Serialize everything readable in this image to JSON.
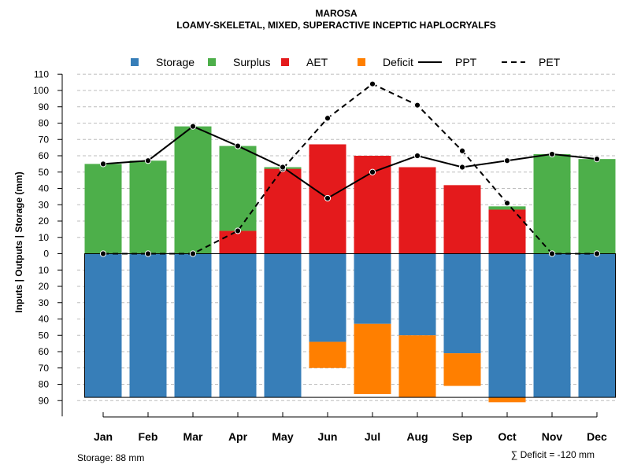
{
  "chart_data": {
    "type": "bar",
    "title": "MAROSA",
    "subtitle": "LOAMY-SKELETAL, MIXED, SUPERACTIVE INCEPTIC HAPLOCRYALFS",
    "ylabel": "Inputs | Outputs | Storage    (mm)",
    "ylim_upper": [
      0,
      110
    ],
    "ylim_lower": [
      0,
      90
    ],
    "yticks_upper": [
      0,
      10,
      20,
      30,
      40,
      50,
      60,
      70,
      80,
      90,
      100,
      110
    ],
    "yticks_lower": [
      10,
      20,
      30,
      40,
      50,
      60,
      70,
      80,
      90
    ],
    "grid": true,
    "categories": [
      "Jan",
      "Feb",
      "Mar",
      "Apr",
      "May",
      "Jun",
      "Jul",
      "Aug",
      "Sep",
      "Oct",
      "Nov",
      "Dec"
    ],
    "legend": [
      {
        "name": "Storage",
        "kind": "swatch",
        "color": "#377EB8"
      },
      {
        "name": "Surplus",
        "kind": "swatch",
        "color": "#4DAF4A"
      },
      {
        "name": "AET",
        "kind": "swatch",
        "color": "#E41A1C"
      },
      {
        "name": "Deficit",
        "kind": "swatch",
        "color": "#FF7F00"
      },
      {
        "name": "PPT",
        "kind": "line",
        "dash": "solid",
        "color": "#000000"
      },
      {
        "name": "PET",
        "kind": "line",
        "dash": "dashed",
        "color": "#000000"
      }
    ],
    "series": [
      {
        "name": "AET",
        "color": "#E41A1C",
        "values": [
          0,
          0,
          0,
          14,
          52,
          67,
          60,
          53,
          42,
          27,
          0,
          0
        ]
      },
      {
        "name": "Surplus",
        "color": "#4DAF4A",
        "values": [
          55,
          57,
          78,
          52,
          1,
          0,
          0,
          0,
          0,
          2,
          61,
          58
        ]
      },
      {
        "name": "Storage",
        "color": "#377EB8",
        "values": [
          88,
          88,
          88,
          88,
          88,
          54,
          43,
          50,
          61,
          88,
          88,
          88
        ]
      },
      {
        "name": "Deficit",
        "color": "#FF7F00",
        "values": [
          0,
          0,
          0,
          0,
          0,
          16,
          43,
          38,
          20,
          3,
          0,
          0
        ]
      },
      {
        "name": "PPT",
        "color": "#000000",
        "values": [
          55,
          57,
          78,
          66,
          53,
          34,
          50,
          60,
          53,
          57,
          61,
          58
        ]
      },
      {
        "name": "PET",
        "color": "#000000",
        "values": [
          0,
          0,
          0,
          14,
          52,
          83,
          104,
          91,
          63,
          31,
          0,
          0
        ]
      }
    ],
    "storage_capacity": 88,
    "footer_left": "Storage: 88 mm",
    "footer_right": "∑ Deficit = -120 mm",
    "colors": {
      "grid": "#bebebe",
      "axis": "#000000"
    }
  }
}
